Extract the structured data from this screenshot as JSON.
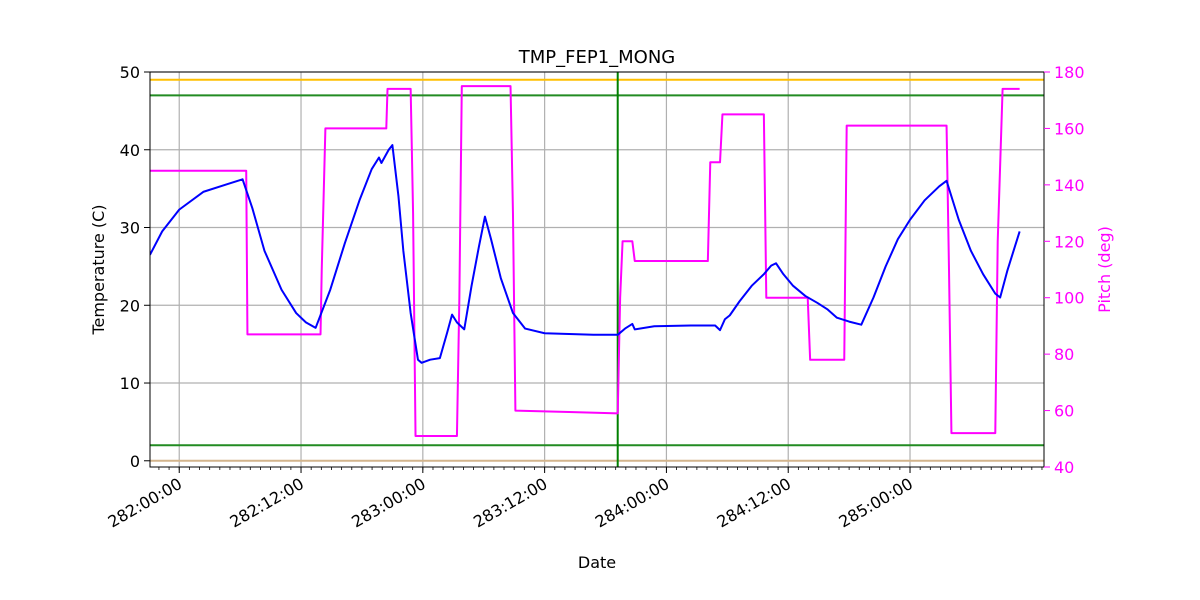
{
  "chart_data": {
    "type": "line",
    "title": "TMP_FEP1_MONG",
    "xlabel": "Date",
    "ylabel": "Temperature (C)",
    "y2label": "Pitch (deg)",
    "xlim": [
      281.88,
      285.55
    ],
    "ylim": [
      -0.8,
      50
    ],
    "y2lim": [
      40,
      180
    ],
    "grid": true,
    "x_ticks": [
      {
        "value": 282.0,
        "label": "282:00:00"
      },
      {
        "value": 282.5,
        "label": "282:12:00"
      },
      {
        "value": 283.0,
        "label": "283:00:00"
      },
      {
        "value": 283.5,
        "label": "283:12:00"
      },
      {
        "value": 284.0,
        "label": "284:00:00"
      },
      {
        "value": 284.5,
        "label": "284:12:00"
      },
      {
        "value": 285.0,
        "label": "285:00:00"
      }
    ],
    "y_ticks": [
      {
        "value": 0,
        "label": "0"
      },
      {
        "value": 10,
        "label": "10"
      },
      {
        "value": 20,
        "label": "20"
      },
      {
        "value": 30,
        "label": "30"
      },
      {
        "value": 40,
        "label": "40"
      },
      {
        "value": 50,
        "label": "50"
      }
    ],
    "y2_ticks": [
      {
        "value": 40,
        "label": "40"
      },
      {
        "value": 60,
        "label": "60"
      },
      {
        "value": 80,
        "label": "80"
      },
      {
        "value": 100,
        "label": "100"
      },
      {
        "value": 120,
        "label": "120"
      },
      {
        "value": 140,
        "label": "140"
      },
      {
        "value": 160,
        "label": "160"
      },
      {
        "value": 180,
        "label": "180"
      }
    ],
    "h_lines": [
      {
        "y": 49,
        "color": "#ffbf00"
      },
      {
        "y": 47,
        "color": "#228b22"
      },
      {
        "y": 2,
        "color": "#228b22"
      },
      {
        "y": 0,
        "color": "#d2b48c"
      }
    ],
    "v_lines": [
      {
        "x": 283.8,
        "color": "#008000"
      }
    ],
    "series": [
      {
        "axis": "left",
        "color": "#0000ff",
        "points": [
          [
            281.88,
            26.5
          ],
          [
            281.93,
            29.5
          ],
          [
            282.0,
            32.3
          ],
          [
            282.1,
            34.6
          ],
          [
            282.2,
            35.6
          ],
          [
            282.26,
            36.2
          ],
          [
            282.3,
            32.5
          ],
          [
            282.35,
            27.0
          ],
          [
            282.42,
            22.0
          ],
          [
            282.48,
            19.0
          ],
          [
            282.52,
            17.8
          ],
          [
            282.56,
            17.1
          ],
          [
            282.62,
            22.0
          ],
          [
            282.68,
            28.0
          ],
          [
            282.74,
            33.5
          ],
          [
            282.79,
            37.5
          ],
          [
            282.82,
            39.0
          ],
          [
            282.83,
            38.3
          ],
          [
            282.86,
            40.0
          ],
          [
            282.875,
            40.6
          ],
          [
            282.9,
            34.0
          ],
          [
            282.92,
            27.0
          ],
          [
            282.95,
            19.0
          ],
          [
            282.98,
            13.0
          ],
          [
            282.995,
            12.6
          ],
          [
            283.03,
            13.0
          ],
          [
            283.07,
            13.2
          ],
          [
            283.1,
            16.5
          ],
          [
            283.12,
            18.8
          ],
          [
            283.14,
            17.8
          ],
          [
            283.17,
            16.9
          ],
          [
            283.2,
            22.5
          ],
          [
            283.23,
            27.5
          ],
          [
            283.255,
            31.4
          ],
          [
            283.28,
            28.5
          ],
          [
            283.32,
            23.5
          ],
          [
            283.37,
            19.0
          ],
          [
            283.42,
            17.0
          ],
          [
            283.5,
            16.4
          ],
          [
            283.6,
            16.3
          ],
          [
            283.7,
            16.2
          ],
          [
            283.8,
            16.2
          ],
          [
            283.83,
            17.0
          ],
          [
            283.86,
            17.6
          ],
          [
            283.87,
            16.9
          ],
          [
            283.95,
            17.3
          ],
          [
            284.1,
            17.4
          ],
          [
            284.2,
            17.4
          ],
          [
            284.22,
            16.8
          ],
          [
            284.24,
            18.2
          ],
          [
            284.26,
            18.7
          ],
          [
            284.3,
            20.5
          ],
          [
            284.35,
            22.5
          ],
          [
            284.4,
            24.0
          ],
          [
            284.43,
            25.1
          ],
          [
            284.45,
            25.4
          ],
          [
            284.48,
            24.0
          ],
          [
            284.52,
            22.5
          ],
          [
            284.57,
            21.2
          ],
          [
            284.62,
            20.3
          ],
          [
            284.66,
            19.5
          ],
          [
            284.7,
            18.4
          ],
          [
            284.75,
            17.9
          ],
          [
            284.8,
            17.5
          ],
          [
            284.85,
            21.0
          ],
          [
            284.9,
            25.0
          ],
          [
            284.95,
            28.5
          ],
          [
            285.0,
            31.0
          ],
          [
            285.06,
            33.5
          ],
          [
            285.12,
            35.3
          ],
          [
            285.15,
            36.0
          ],
          [
            285.2,
            31.0
          ],
          [
            285.25,
            27.0
          ],
          [
            285.3,
            24.0
          ],
          [
            285.35,
            21.5
          ],
          [
            285.37,
            21.0
          ],
          [
            285.4,
            24.5
          ],
          [
            285.43,
            27.5
          ],
          [
            285.45,
            29.5
          ]
        ]
      },
      {
        "axis": "right",
        "color": "#ff00ff",
        "points": [
          [
            281.88,
            145
          ],
          [
            282.14,
            145
          ],
          [
            282.145,
            145
          ],
          [
            282.15,
            145
          ],
          [
            282.26,
            145
          ],
          [
            282.275,
            145
          ],
          [
            282.28,
            87
          ],
          [
            282.58,
            87
          ],
          [
            282.585,
            110
          ],
          [
            282.6,
            160
          ],
          [
            282.85,
            160
          ],
          [
            282.855,
            174
          ],
          [
            282.95,
            174
          ],
          [
            282.96,
            130
          ],
          [
            282.97,
            51
          ],
          [
            283.14,
            51
          ],
          [
            283.15,
            100
          ],
          [
            283.16,
            175
          ],
          [
            283.36,
            175
          ],
          [
            283.37,
            130
          ],
          [
            283.38,
            60
          ],
          [
            283.6,
            59.5
          ],
          [
            283.8,
            59
          ],
          [
            283.81,
            100
          ],
          [
            283.82,
            120
          ],
          [
            283.86,
            120
          ],
          [
            283.87,
            113
          ],
          [
            284.17,
            113
          ],
          [
            284.18,
            148
          ],
          [
            284.22,
            148
          ],
          [
            284.23,
            165
          ],
          [
            284.4,
            165
          ],
          [
            284.41,
            100
          ],
          [
            284.58,
            100
          ],
          [
            284.59,
            78
          ],
          [
            284.73,
            78
          ],
          [
            284.74,
            161
          ],
          [
            285.15,
            161
          ],
          [
            285.16,
            110
          ],
          [
            285.17,
            52
          ],
          [
            285.35,
            52
          ],
          [
            285.36,
            120
          ],
          [
            285.38,
            174
          ],
          [
            285.45,
            174
          ]
        ]
      }
    ]
  }
}
